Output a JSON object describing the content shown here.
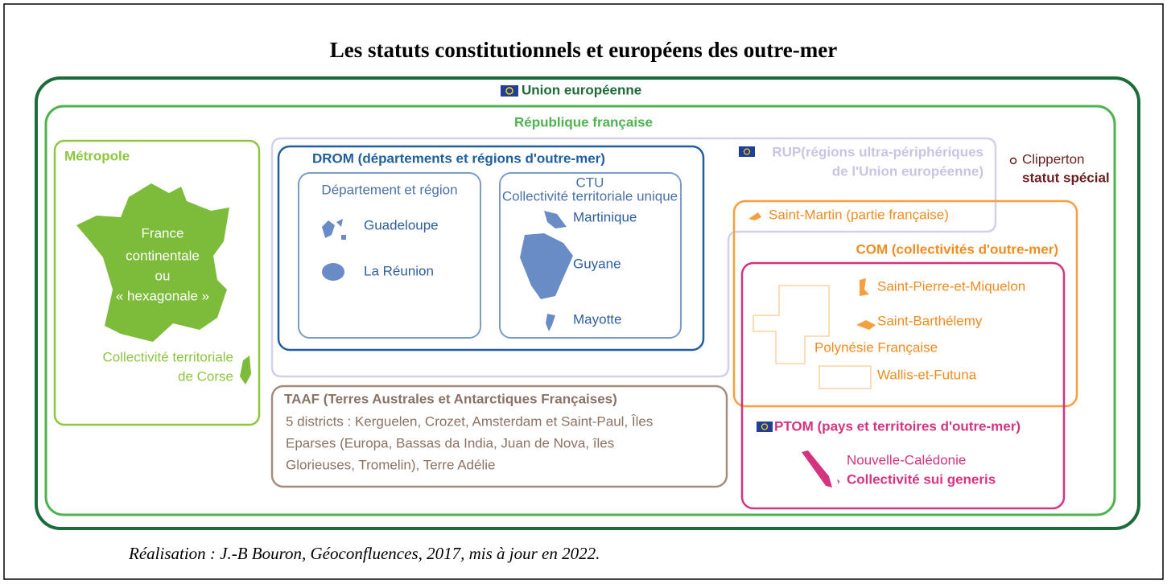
{
  "title": "Les statuts constitutionnels et européens des outre-mer",
  "eu": {
    "label": "Union européenne"
  },
  "republique": {
    "label": "République française"
  },
  "metropole": {
    "label": "Métropole",
    "france": [
      "France",
      "continentale",
      "ou",
      "« hexagonale »"
    ],
    "corse": [
      "Collectivité territoriale",
      "de Corse"
    ]
  },
  "rup": {
    "label": [
      "RUP(régions ultra-périphériques",
      "de l'Union européenne)"
    ]
  },
  "drom": {
    "label": "DROM (départements et régions d'outre-mer)",
    "departement": {
      "label": "Département et région",
      "items": [
        "Guadeloupe",
        "La Réunion"
      ]
    },
    "ctu": {
      "label": "CTU",
      "sublabel": "Collectivité territoriale unique",
      "items": [
        "Martinique",
        "Guyane",
        "Mayotte"
      ]
    }
  },
  "clipperton": {
    "label": "Clipperton",
    "status": "statut spécial"
  },
  "saint_martin": "Saint-Martin (partie française)",
  "com": {
    "label": "COM (collectivités d'outre-mer)",
    "items": [
      "Saint-Pierre-et-Miquelon",
      "Saint-Barthélemy",
      "Polynésie Française",
      "Wallis-et-Futuna"
    ]
  },
  "ptom": {
    "label": "PTOM (pays et territoires d'outre-mer)",
    "item": "Nouvelle-Calédonie",
    "status": "Collectivité sui generis"
  },
  "taaf": {
    "label": "TAAF (Terres Australes et Antarctiques Françaises)",
    "lines": [
      "5 districts : Kerguelen, Crozet, Amsterdam et Saint-Paul, Îles",
      "Eparses (Europa, Bassas da India, Juan de Nova, îles",
      "Glorieuses, Tromelin), Terre Adélie"
    ]
  },
  "footer": "Réalisation : J.-B Bouron, Géoconfluences, 2017, mis à jour en 2022."
}
